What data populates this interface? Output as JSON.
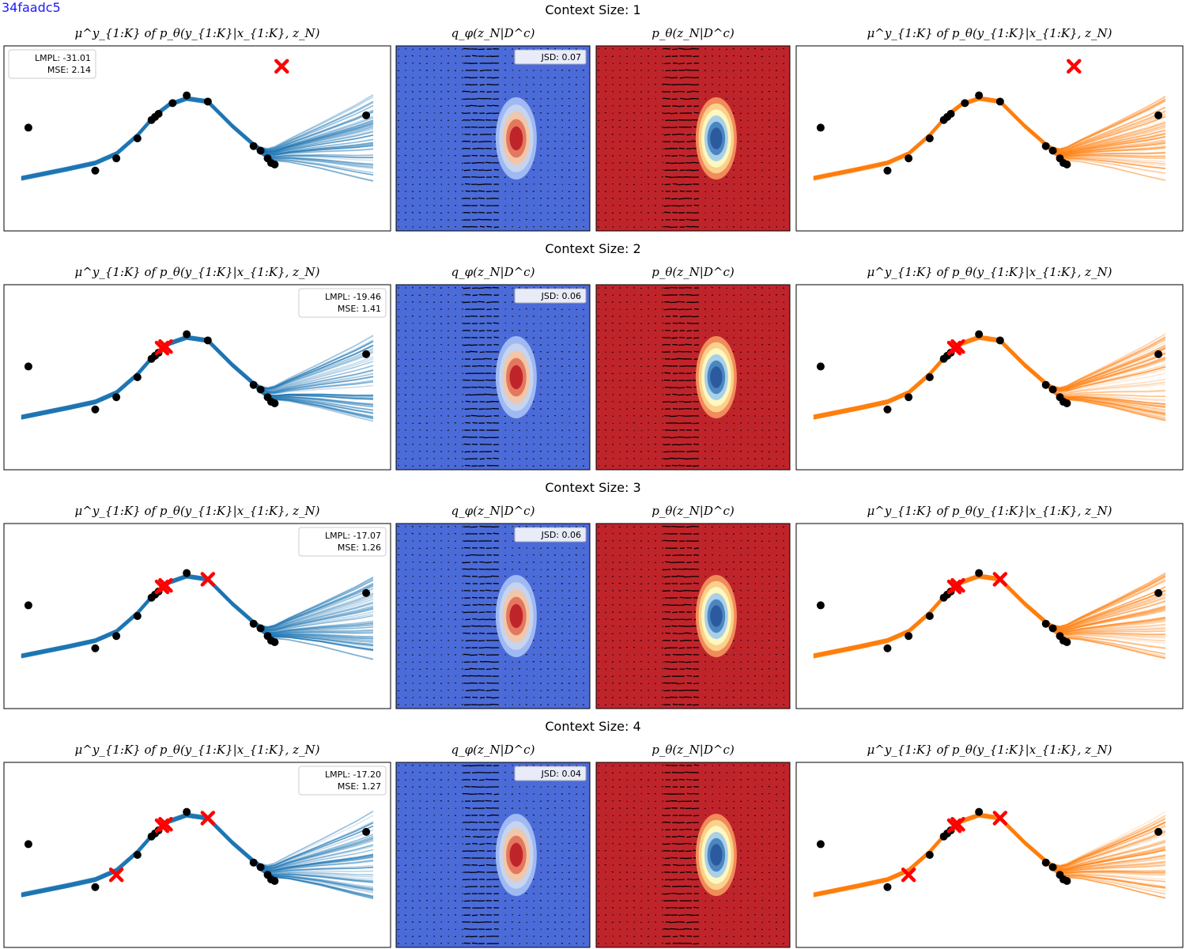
{
  "figure_tag": "34faadc5",
  "colors": {
    "blue_traj": "#1f77b4",
    "orange_traj": "#ff7f0e",
    "points": "#000000",
    "targets": "#ff0000",
    "q_background": "#4b6bd8",
    "p_background": "#c0242b",
    "legend_text": "#000000"
  },
  "chart_data": [
    {
      "type": "figure-grid",
      "row_title": "Context Size: 1",
      "panels": [
        {
          "type": "line",
          "title": "μ^y_{1:K} of p_θ(y_{1:K}|x_{1:K}, z_N)",
          "series_color": "blue",
          "legend": [
            "LMPL: -31.01",
            "MSE: 2.14"
          ],
          "legend_placement": "upper left"
        },
        {
          "type": "heatmap",
          "title": "q_φ(z_N|D^c)",
          "colormap": "coolwarm",
          "legend": [
            "JSD: 0.07"
          ],
          "legend_placement": "upper right"
        },
        {
          "type": "heatmap",
          "title": "p_θ(z_N|D^c)",
          "colormap": "coolwarm_r"
        },
        {
          "type": "line",
          "title": "μ^y_{1:K} of p_θ(y_{1:K}|x_{1:K}, z_N)",
          "series_color": "orange"
        }
      ],
      "context_points": [
        [
          0.74,
          0.97
        ]
      ],
      "target_points": [
        [
          0.02,
          0.57
        ],
        [
          0.21,
          0.29
        ],
        [
          0.27,
          0.37
        ],
        [
          0.33,
          0.5
        ],
        [
          0.37,
          0.62
        ],
        [
          0.38,
          0.64
        ],
        [
          0.39,
          0.66
        ],
        [
          0.43,
          0.73
        ],
        [
          0.47,
          0.78
        ],
        [
          0.53,
          0.74
        ],
        [
          0.66,
          0.45
        ],
        [
          0.68,
          0.42
        ],
        [
          0.7,
          0.37
        ],
        [
          0.71,
          0.34
        ],
        [
          0.72,
          0.33
        ],
        [
          0.98,
          0.65
        ]
      ]
    },
    {
      "type": "figure-grid",
      "row_title": "Context Size: 2",
      "panels": [
        {
          "type": "line",
          "title": "μ^y_{1:K} of p_θ(y_{1:K}|x_{1:K}, z_N)",
          "series_color": "blue",
          "legend": [
            "LMPL: -19.46",
            "MSE: 1.41"
          ],
          "legend_placement": "upper right"
        },
        {
          "type": "heatmap",
          "title": "q_φ(z_N|D^c)",
          "colormap": "coolwarm",
          "legend": [
            "JSD: 0.06"
          ],
          "legend_placement": "upper right"
        },
        {
          "type": "heatmap",
          "title": "p_θ(z_N|D^c)",
          "colormap": "coolwarm_r"
        },
        {
          "type": "line",
          "title": "μ^y_{1:K} of p_θ(y_{1:K}|x_{1:K}, z_N)",
          "series_color": "orange"
        }
      ],
      "context_points": [
        [
          0.4,
          0.69
        ],
        [
          0.41,
          0.7
        ]
      ],
      "target_points": [
        [
          0.02,
          0.57
        ],
        [
          0.21,
          0.29
        ],
        [
          0.27,
          0.37
        ],
        [
          0.33,
          0.5
        ],
        [
          0.37,
          0.62
        ],
        [
          0.38,
          0.64
        ],
        [
          0.39,
          0.66
        ],
        [
          0.47,
          0.78
        ],
        [
          0.53,
          0.74
        ],
        [
          0.66,
          0.45
        ],
        [
          0.68,
          0.42
        ],
        [
          0.7,
          0.37
        ],
        [
          0.71,
          0.34
        ],
        [
          0.72,
          0.33
        ],
        [
          0.98,
          0.65
        ]
      ]
    },
    {
      "type": "figure-grid",
      "row_title": "Context Size: 3",
      "panels": [
        {
          "type": "line",
          "title": "μ^y_{1:K} of p_θ(y_{1:K}|x_{1:K}, z_N)",
          "series_color": "blue",
          "legend": [
            "LMPL: -17.07",
            "MSE: 1.26"
          ],
          "legend_placement": "upper right"
        },
        {
          "type": "heatmap",
          "title": "q_φ(z_N|D^c)",
          "colormap": "coolwarm",
          "legend": [
            "JSD: 0.06"
          ],
          "legend_placement": "upper right"
        },
        {
          "type": "heatmap",
          "title": "p_θ(z_N|D^c)",
          "colormap": "coolwarm_r"
        },
        {
          "type": "line",
          "title": "μ^y_{1:K} of p_θ(y_{1:K}|x_{1:K}, z_N)",
          "series_color": "orange"
        }
      ],
      "context_points": [
        [
          0.4,
          0.69
        ],
        [
          0.41,
          0.7
        ],
        [
          0.53,
          0.74
        ]
      ],
      "target_points": [
        [
          0.02,
          0.57
        ],
        [
          0.21,
          0.29
        ],
        [
          0.27,
          0.37
        ],
        [
          0.33,
          0.5
        ],
        [
          0.37,
          0.62
        ],
        [
          0.38,
          0.64
        ],
        [
          0.39,
          0.66
        ],
        [
          0.47,
          0.78
        ],
        [
          0.66,
          0.45
        ],
        [
          0.68,
          0.42
        ],
        [
          0.7,
          0.37
        ],
        [
          0.71,
          0.34
        ],
        [
          0.72,
          0.33
        ],
        [
          0.98,
          0.65
        ]
      ]
    },
    {
      "type": "figure-grid",
      "row_title": "Context Size: 4",
      "panels": [
        {
          "type": "line",
          "title": "μ^y_{1:K} of p_θ(y_{1:K}|x_{1:K}, z_N)",
          "series_color": "blue",
          "legend": [
            "LMPL: -17.20",
            "MSE: 1.27"
          ],
          "legend_placement": "upper right"
        },
        {
          "type": "heatmap",
          "title": "q_φ(z_N|D^c)",
          "colormap": "coolwarm",
          "legend": [
            "JSD: 0.04"
          ],
          "legend_placement": "upper right"
        },
        {
          "type": "heatmap",
          "title": "p_θ(z_N|D^c)",
          "colormap": "coolwarm_r"
        },
        {
          "type": "line",
          "title": "μ^y_{1:K} of p_θ(y_{1:K}|x_{1:K}, z_N)",
          "series_color": "orange"
        }
      ],
      "context_points": [
        [
          0.27,
          0.37
        ],
        [
          0.4,
          0.69
        ],
        [
          0.41,
          0.7
        ],
        [
          0.53,
          0.74
        ]
      ],
      "target_points": [
        [
          0.02,
          0.57
        ],
        [
          0.21,
          0.29
        ],
        [
          0.33,
          0.5
        ],
        [
          0.37,
          0.62
        ],
        [
          0.38,
          0.64
        ],
        [
          0.39,
          0.66
        ],
        [
          0.47,
          0.78
        ],
        [
          0.66,
          0.45
        ],
        [
          0.68,
          0.42
        ],
        [
          0.7,
          0.37
        ],
        [
          0.71,
          0.34
        ],
        [
          0.72,
          0.33
        ],
        [
          0.98,
          0.65
        ]
      ]
    }
  ]
}
